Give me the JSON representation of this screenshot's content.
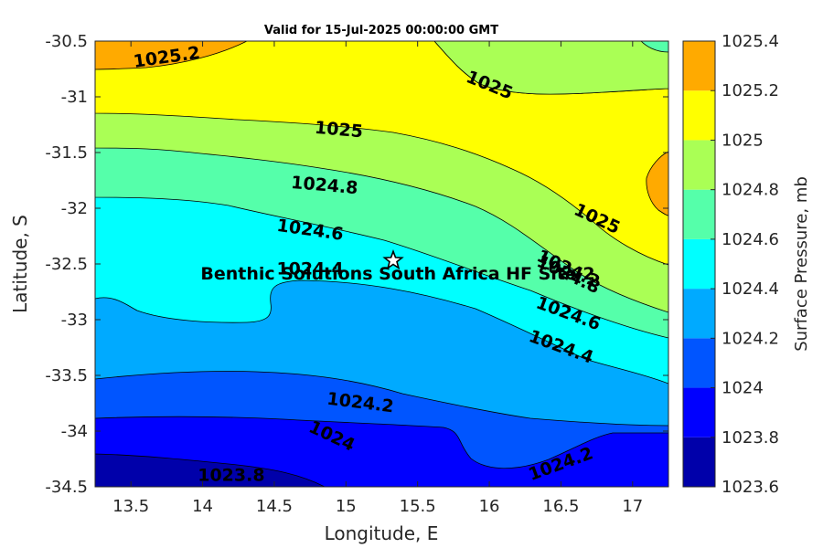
{
  "chart_data": {
    "type": "contour",
    "title": "Valid for 15-Jul-2025 00:00:00 GMT",
    "xlabel": "Longitude, E",
    "ylabel": "Latitude, S",
    "xlim": [
      13.25,
      17.25
    ],
    "ylim": [
      -34.5,
      -30.5
    ],
    "xticks": [
      "13.5",
      "14",
      "14.5",
      "15",
      "15.5",
      "16",
      "16.5",
      "17"
    ],
    "xtick_values": [
      13.5,
      14,
      14.5,
      15,
      15.5,
      16,
      16.5,
      17
    ],
    "yticks": [
      "-30.5",
      "-31",
      "-31.5",
      "-32",
      "-32.5",
      "-33",
      "-33.5",
      "-34",
      "-34.5"
    ],
    "ytick_values": [
      -30.5,
      -31,
      -31.5,
      -32,
      -32.5,
      -33,
      -33.5,
      -34,
      -34.5
    ],
    "colorbar": {
      "label": "Surface Pressure, mb",
      "levels": [
        1023.6,
        1023.8,
        1024,
        1024.2,
        1024.4,
        1024.6,
        1024.8,
        1025,
        1025.2,
        1025.4
      ],
      "tick_labels": [
        "1023.6",
        "1023.8",
        "1024",
        "1024.2",
        "1024.4",
        "1024.6",
        "1024.8",
        "1025",
        "1025.2",
        "1025.4"
      ],
      "colors": [
        "#0000aa",
        "#0000ff",
        "#0055ff",
        "#00aaff",
        "#00ffff",
        "#55ffaa",
        "#aaff55",
        "#ffff00",
        "#ffaa00",
        "#ff5500"
      ]
    },
    "contour_labels": [
      {
        "text": "1025.2",
        "lon": 13.75,
        "lat": -30.65
      },
      {
        "text": "1025",
        "lon": 16.0,
        "lat": -30.9
      },
      {
        "text": "1025",
        "lon": 14.95,
        "lat": -31.3
      },
      {
        "text": "1024.8",
        "lon": 14.85,
        "lat": -31.8
      },
      {
        "text": "1025",
        "lon": 16.75,
        "lat": -32.1
      },
      {
        "text": "1024.6",
        "lon": 14.75,
        "lat": -32.2
      },
      {
        "text": "1024.4",
        "lon": 14.75,
        "lat": -32.55
      },
      {
        "text": "1024.2",
        "lon": 16.55,
        "lat": -32.55
      },
      {
        "text": "1024.8",
        "lon": 16.55,
        "lat": -32.6
      },
      {
        "text": "1024.6",
        "lon": 16.55,
        "lat": -32.95
      },
      {
        "text": "1024.4",
        "lon": 16.5,
        "lat": -33.25
      },
      {
        "text": "1024.2",
        "lon": 15.1,
        "lat": -33.75
      },
      {
        "text": "1024",
        "lon": 14.9,
        "lat": -34.05
      },
      {
        "text": "1023.8",
        "lon": 14.2,
        "lat": -34.4
      },
      {
        "text": "1024.2",
        "lon": 16.5,
        "lat": -34.3
      }
    ],
    "site": {
      "name": "Benthic Solutions South Africa HF Site 2",
      "lon": 15.33,
      "lat": -32.47,
      "marker": "star-icon"
    },
    "grid": false,
    "colorbar_placement": "right"
  }
}
